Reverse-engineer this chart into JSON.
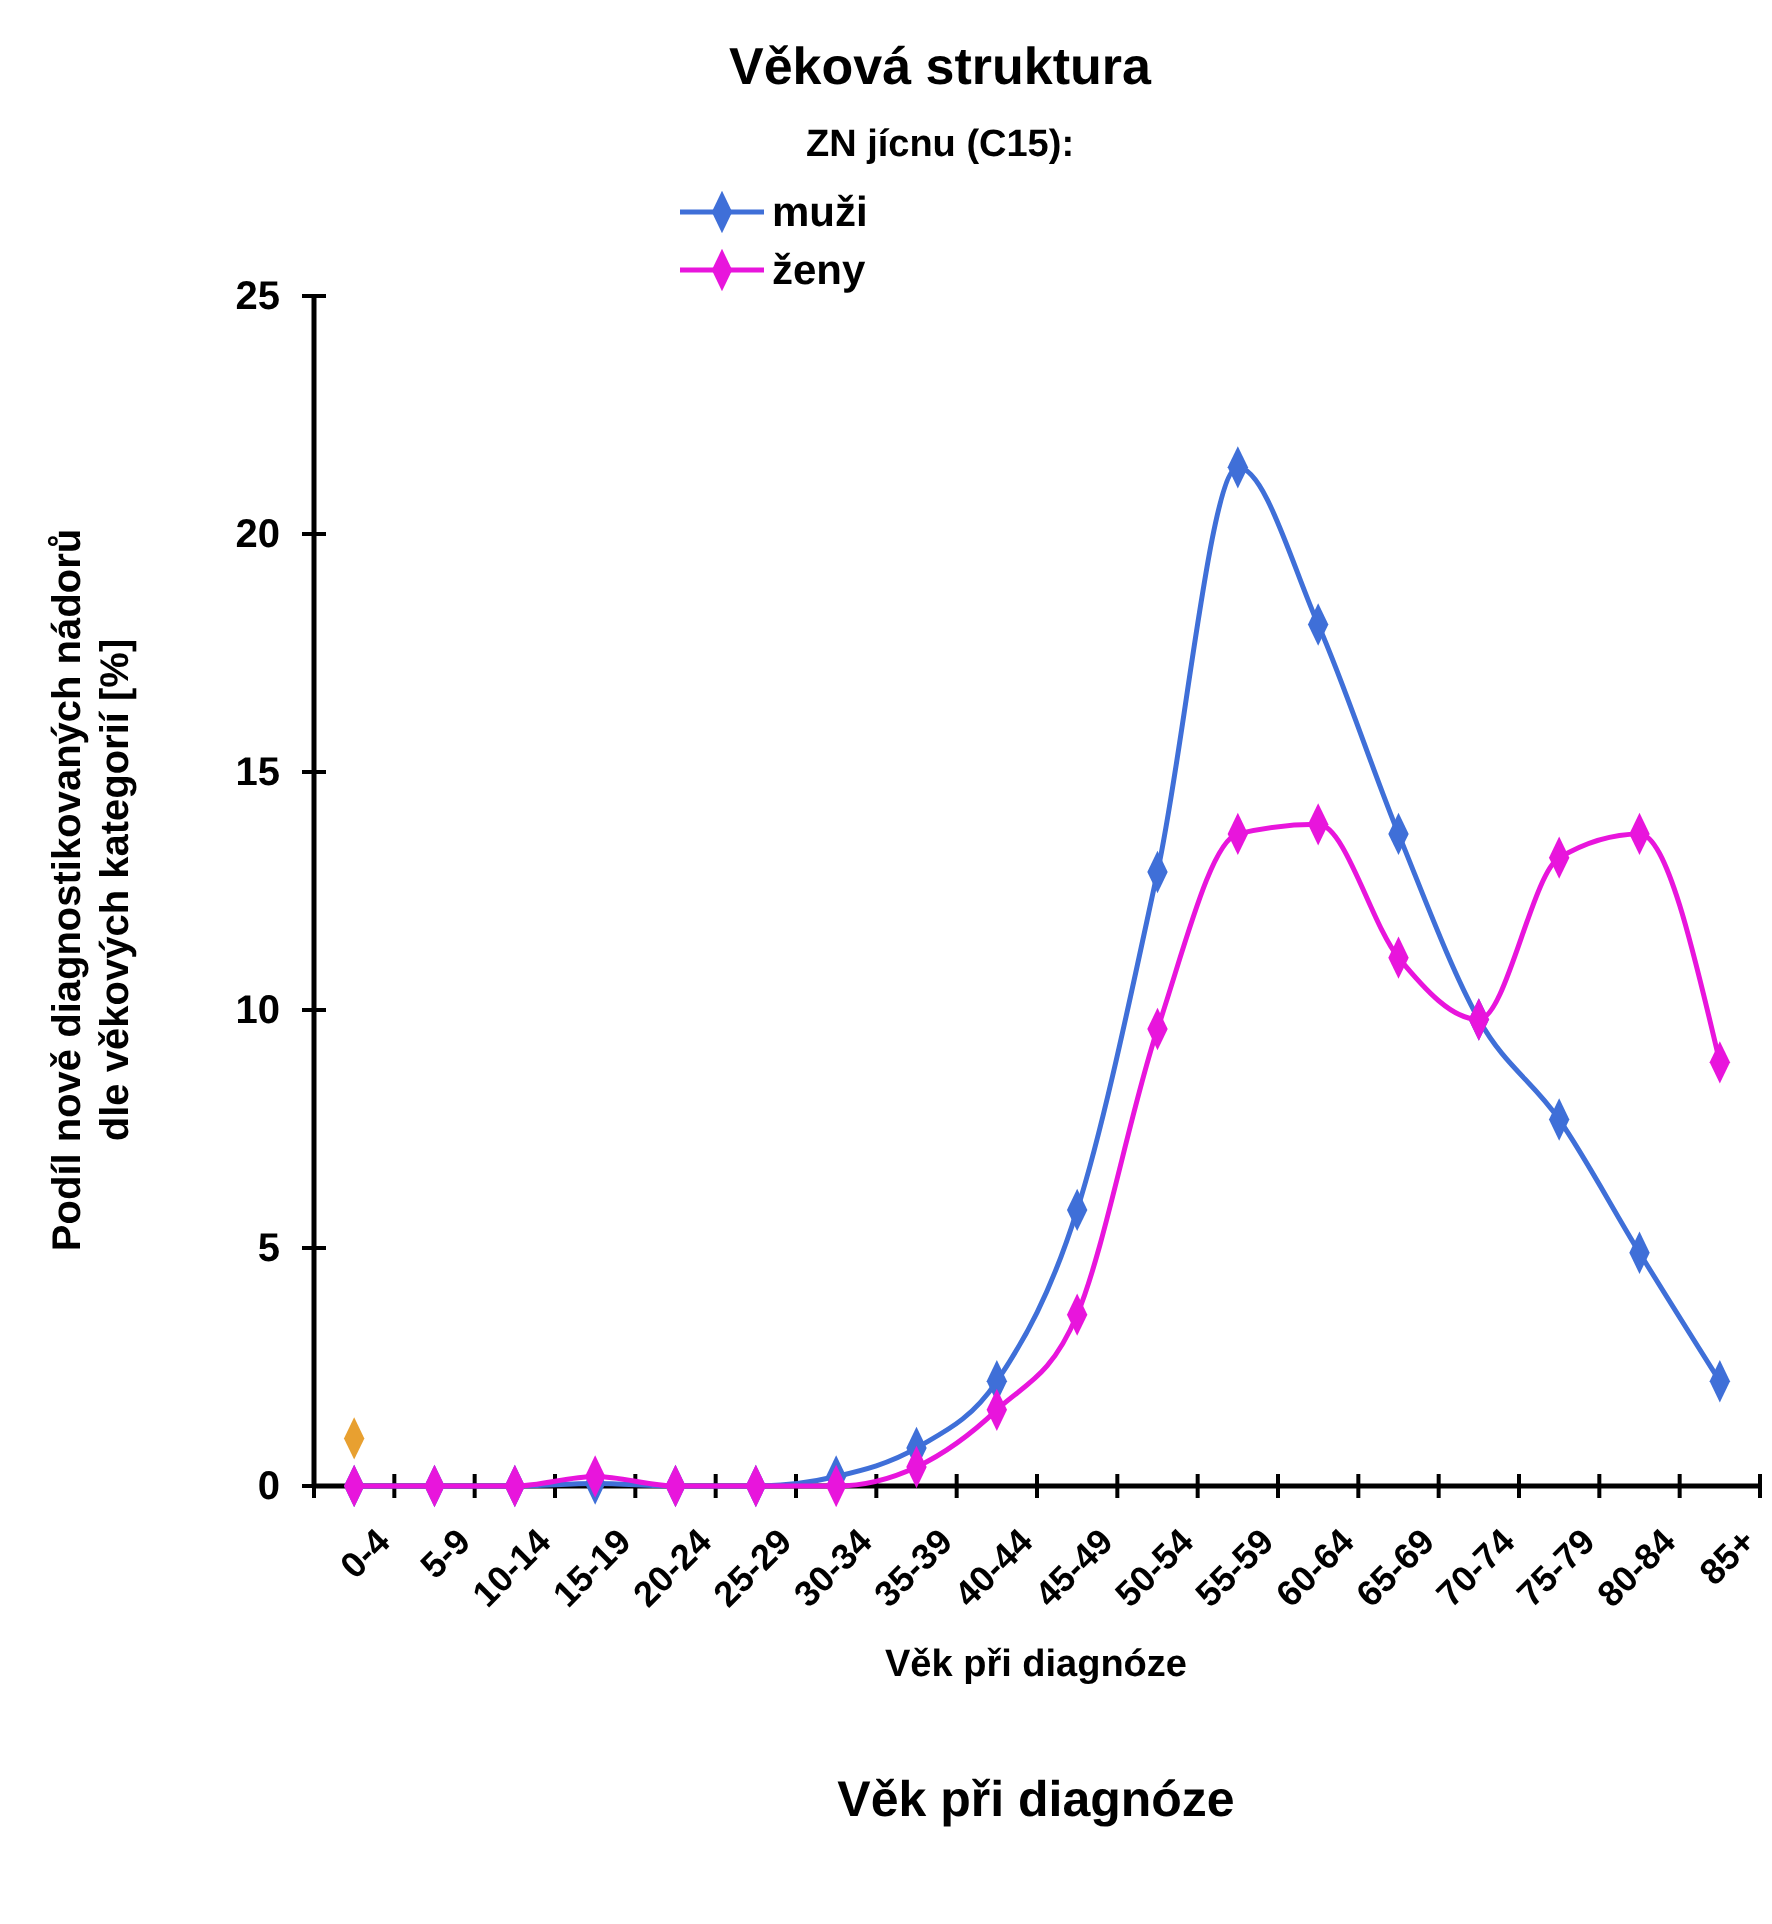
{
  "chart_data": {
    "type": "line",
    "title": "Věková struktura",
    "legend_title": "ZN jícnu (C15):",
    "xlabel": "Věk při diagnóze",
    "ylabel": "Podíl nově diagnostikovaných nádorů dle věkových kategorií [%]",
    "annotations": [
      "Věk při diagnóze"
    ],
    "categories": [
      "0-4",
      "5-9",
      "10-14",
      "15-19",
      "20-24",
      "25-29",
      "30-34",
      "35-39",
      "40-44",
      "45-49",
      "50-54",
      "55-59",
      "60-64",
      "65-69",
      "70-74",
      "75-79",
      "80-84",
      "85+"
    ],
    "series": [
      {
        "name": "muži",
        "color": "#3f6fd8",
        "values": [
          0,
          0,
          0,
          0.05,
          0,
          0,
          0.2,
          0.8,
          2.2,
          5.8,
          12.9,
          21.4,
          18.1,
          13.7,
          9.8,
          7.7,
          4.9,
          2.2
        ]
      },
      {
        "name": "ženy",
        "color": "#e815dc",
        "values": [
          0,
          0,
          0,
          0.2,
          0,
          0,
          0,
          0.4,
          1.6,
          3.6,
          9.6,
          13.7,
          13.9,
          11.1,
          9.8,
          13.2,
          13.7,
          8.9
        ]
      },
      {
        "type": "scatter",
        "color": "#e8a030",
        "values": [
          1.0,
          null,
          null,
          null,
          null,
          null,
          null,
          null,
          null,
          null,
          null,
          null,
          null,
          null,
          null,
          null,
          null,
          null
        ]
      }
    ],
    "ylim": [
      0,
      25
    ],
    "yticks": [
      0,
      5,
      10,
      15,
      20,
      25
    ],
    "grid": false,
    "legend": "top",
    "marker": "diamond",
    "line_style": "solid"
  }
}
